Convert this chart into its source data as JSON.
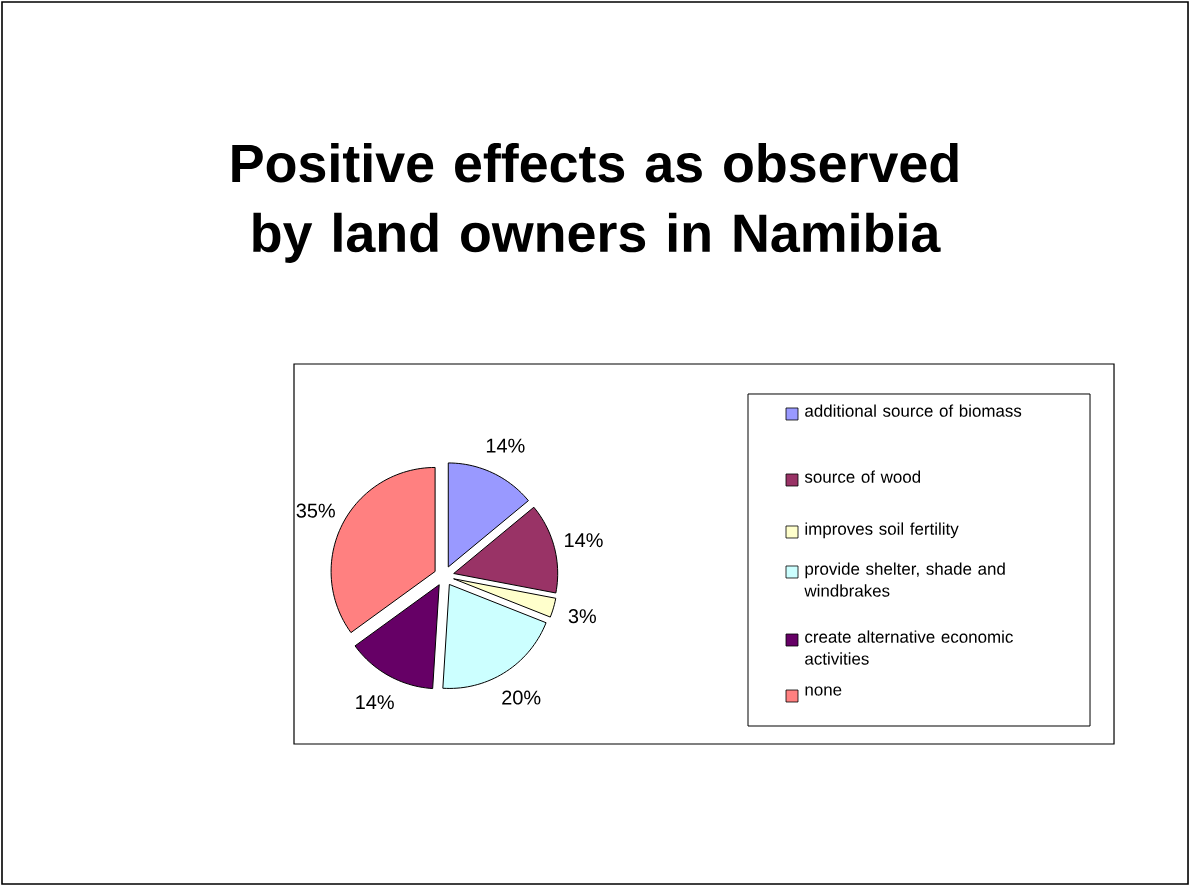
{
  "chart_data": {
    "type": "pie",
    "title": "Positive effects as observed by land owners in Namibia",
    "categories": [
      "additional source of biomass",
      "source of wood",
      "improves soil fertility",
      "provide shelter, shade and windbrakes",
      "create alternative economic activities",
      "none"
    ],
    "values": [
      14,
      14,
      3,
      20,
      14,
      35
    ],
    "colors": [
      "#9999ff",
      "#993366",
      "#ffffcc",
      "#ccffff",
      "#660066",
      "#ff8080"
    ],
    "value_labels": [
      "14%",
      "14%",
      "3%",
      "20%",
      "14%",
      "35%"
    ],
    "legend": "right"
  }
}
